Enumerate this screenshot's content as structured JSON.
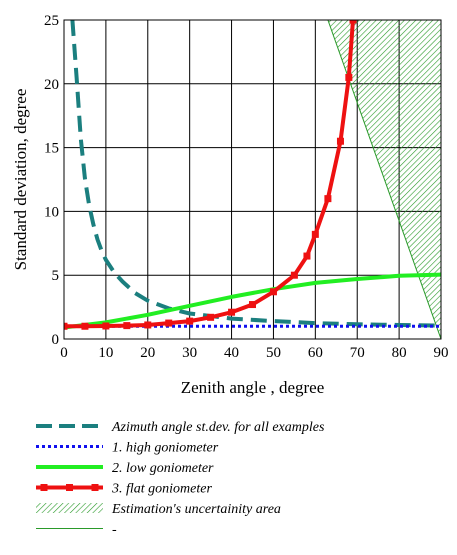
{
  "chart_data": {
    "type": "line",
    "xlabel": "Zenith angle , degree",
    "ylabel": "Standard deviation, degree",
    "xlim": [
      0,
      90
    ],
    "ylim": [
      0,
      25
    ],
    "x_ticks": [
      "0",
      "10",
      "20",
      "30",
      "40",
      "50",
      "60",
      "70",
      "80",
      "90"
    ],
    "y_ticks": [
      "0",
      "5",
      "10",
      "15",
      "20",
      "25"
    ],
    "grid": true,
    "series": [
      {
        "name": "Azimuth angle st.dev. for all examples",
        "color": "#1b7f7f",
        "style": "dashed",
        "x": [
          2,
          3,
          4,
          5,
          6,
          7,
          8,
          9,
          10,
          12,
          14,
          17,
          20,
          25,
          30,
          40,
          50,
          60,
          70,
          80,
          90
        ],
        "y": [
          25,
          20.5,
          15.7,
          12.6,
          10.5,
          9.0,
          7.8,
          6.9,
          6.2,
          5.2,
          4.5,
          3.6,
          3.0,
          2.4,
          2.0,
          1.6,
          1.4,
          1.25,
          1.15,
          1.1,
          1.05
        ]
      },
      {
        "name": "1. high goniometer",
        "color": "#1010ee",
        "style": "dotted",
        "x": [
          0,
          90
        ],
        "y": [
          1.0,
          1.0
        ]
      },
      {
        "name": "2. low goniometer",
        "color": "#22ee22",
        "style": "solid",
        "x": [
          0,
          10,
          20,
          30,
          40,
          50,
          60,
          70,
          80,
          90
        ],
        "y": [
          0.9,
          1.3,
          1.9,
          2.6,
          3.3,
          3.9,
          4.4,
          4.7,
          4.95,
          5.05
        ]
      },
      {
        "name": "3. flat goniometer",
        "color": "#ee1111",
        "style": "solid-markers",
        "x": [
          0,
          5,
          10,
          15,
          20,
          25,
          30,
          35,
          40,
          45,
          50,
          55,
          58,
          60,
          63,
          66,
          68,
          69
        ],
        "y": [
          1.0,
          1.0,
          1.02,
          1.05,
          1.1,
          1.25,
          1.4,
          1.7,
          2.1,
          2.7,
          3.7,
          5.0,
          6.5,
          8.2,
          11.0,
          15.5,
          20.5,
          25
        ]
      }
    ],
    "uncertainty_area": {
      "name": "Estimation's uncertainity area",
      "color": "#2a9a2a",
      "polygon_data": [
        [
          63,
          25
        ],
        [
          90,
          25
        ],
        [
          90,
          0
        ]
      ]
    },
    "uncertainty_line": {
      "name": "-",
      "color": "#2a9a2a",
      "x": [
        63,
        90
      ],
      "y": [
        25,
        0
      ]
    }
  }
}
